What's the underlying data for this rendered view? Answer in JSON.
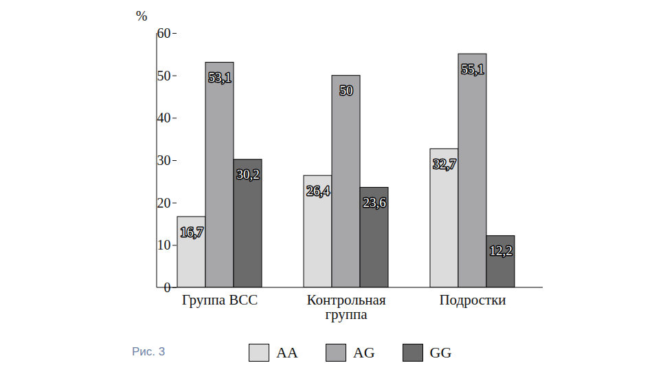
{
  "chart_data": {
    "type": "bar",
    "caption": "Рис. 3",
    "y_label": "%",
    "categories": [
      "Группа ВСС",
      "Контрольная\nгруппа",
      "Подростки"
    ],
    "series": [
      {
        "name": "AA",
        "color": "#dcdcdd",
        "values": [
          16.7,
          26.4,
          32.7
        ],
        "value_labels": [
          "16,7",
          "26,4",
          "32,7"
        ]
      },
      {
        "name": "AG",
        "color": "#a7a7a9",
        "values": [
          53.1,
          50,
          55.1
        ],
        "value_labels": [
          "53,1",
          "50",
          "55,1"
        ]
      },
      {
        "name": "GG",
        "color": "#6b6b6c",
        "values": [
          30.2,
          23.6,
          12.2
        ],
        "value_labels": [
          "30,2",
          "23,6",
          "12,2"
        ]
      }
    ],
    "ylim": [
      0,
      60
    ],
    "yticks": [
      0,
      10,
      20,
      30,
      40,
      50,
      60
    ],
    "data_labels": true,
    "legend": "bottom"
  }
}
